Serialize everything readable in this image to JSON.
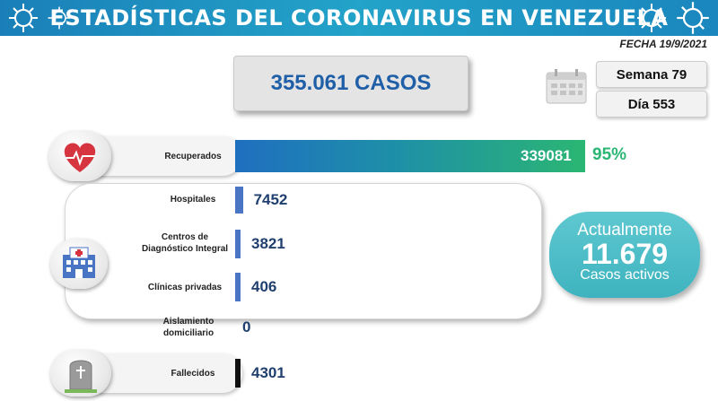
{
  "header": {
    "title": "ESTADÍSTICAS DEL CORONAVIRUS EN VENEZUELA"
  },
  "date": "FECHA 19/9/2021",
  "cases": "355.061 CASOS",
  "week": "Semana 79",
  "day": "Día 553",
  "colors": {
    "header": "#1a86bd",
    "recovered_bar_start": "#1f6fc0",
    "recovered_bar_end": "#2bb673",
    "bar": "#4a74c4",
    "deaths_bar": "#111111",
    "active_bubble": "#4bbcc6"
  },
  "icons": [
    "virus-icon",
    "calendar-icon",
    "heart-icon",
    "hospital-icon",
    "tombstone-icon"
  ],
  "chart_data": {
    "type": "bar",
    "orientation": "horizontal",
    "categories": [
      "Recuperados",
      "Hospitales",
      "Centros de Diagnóstico Integral",
      "Clínicas privadas",
      "Aislamiento domiciliario",
      "Fallecidos"
    ],
    "values": [
      339081,
      7452,
      3821,
      406,
      0,
      4301
    ],
    "labels": [
      "339081",
      "7452",
      "3821",
      "406",
      "0",
      "4301"
    ],
    "recovered_percent": "95%",
    "xlim": [
      0,
      339081
    ]
  },
  "active": {
    "top": "Actualmente",
    "number": "11.679",
    "bottom": "Casos activos"
  }
}
